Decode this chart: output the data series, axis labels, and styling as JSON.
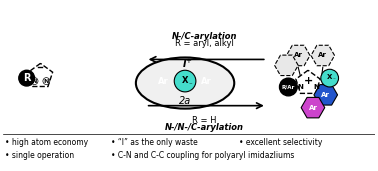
{
  "bg_color": "#ffffff",
  "bullet_points": [
    [
      "• high atom economy",
      "• “I” as the only waste",
      "• excellent selectivity"
    ],
    [
      "• single operation",
      "• C-N and C-C coupling for polyaryl imidazliums",
      ""
    ]
  ],
  "top_label": "N-/C-arylation\nR = aryl, alkyl",
  "bottom_label": "R = H\nN-/N-/C-arylation",
  "label_2a": "2a",
  "color_blue": "#2255cc",
  "color_purple": "#cc44cc",
  "color_cyan": "#44ddcc",
  "color_black": "#111111",
  "color_gray": "#888888",
  "color_light": "#e0e0e0"
}
